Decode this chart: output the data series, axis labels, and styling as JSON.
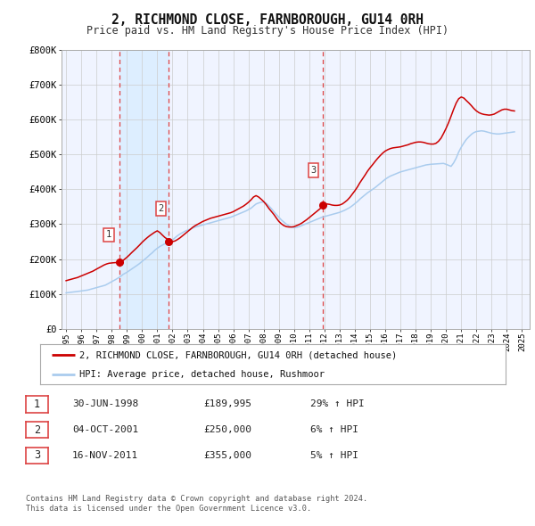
{
  "title": "2, RICHMOND CLOSE, FARNBOROUGH, GU14 0RH",
  "subtitle": "Price paid vs. HM Land Registry's House Price Index (HPI)",
  "ylim": [
    0,
    800000
  ],
  "yticks": [
    0,
    100000,
    200000,
    300000,
    400000,
    500000,
    600000,
    700000,
    800000
  ],
  "ytick_labels": [
    "£0",
    "£100K",
    "£200K",
    "£300K",
    "£400K",
    "£500K",
    "£600K",
    "£700K",
    "£800K"
  ],
  "xlim_start": 1994.7,
  "xlim_end": 2025.5,
  "sale_color": "#cc0000",
  "hpi_color": "#aaccee",
  "vline_color": "#dd4444",
  "vshade_color": "#ddeeff",
  "grid_color": "#cccccc",
  "sale_dates": [
    1998.5,
    2001.75,
    2011.88
  ],
  "sale_prices": [
    189995,
    250000,
    355000
  ],
  "sale_labels": [
    "1",
    "2",
    "3"
  ],
  "vline_dates": [
    1998.5,
    2001.75,
    2011.88
  ],
  "legend_sale_label": "2, RICHMOND CLOSE, FARNBOROUGH, GU14 0RH (detached house)",
  "legend_hpi_label": "HPI: Average price, detached house, Rushmoor",
  "table_rows": [
    {
      "num": "1",
      "date": "30-JUN-1998",
      "price": "£189,995",
      "hpi": "29% ↑ HPI"
    },
    {
      "num": "2",
      "date": "04-OCT-2001",
      "price": "£250,000",
      "hpi": "6% ↑ HPI"
    },
    {
      "num": "3",
      "date": "16-NOV-2011",
      "price": "£355,000",
      "hpi": "5% ↑ HPI"
    }
  ],
  "footnote1": "Contains HM Land Registry data © Crown copyright and database right 2024.",
  "footnote2": "This data is licensed under the Open Government Licence v3.0.",
  "background_color": "#ffffff",
  "plot_bg_color": "#f0f4ff",
  "hpi_series_x": [
    1995.0,
    1995.08,
    1995.17,
    1995.25,
    1995.33,
    1995.42,
    1995.5,
    1995.58,
    1995.67,
    1995.75,
    1995.83,
    1995.92,
    1996.0,
    1996.08,
    1996.17,
    1996.25,
    1996.33,
    1996.42,
    1996.5,
    1996.58,
    1996.67,
    1996.75,
    1996.83,
    1996.92,
    1997.0,
    1997.08,
    1997.17,
    1997.25,
    1997.33,
    1997.42,
    1997.5,
    1997.58,
    1997.67,
    1997.75,
    1997.83,
    1997.92,
    1998.0,
    1998.08,
    1998.17,
    1998.25,
    1998.33,
    1998.42,
    1998.5,
    1998.58,
    1998.67,
    1998.75,
    1998.83,
    1998.92,
    1999.0,
    1999.17,
    1999.33,
    1999.5,
    1999.67,
    1999.83,
    2000.0,
    2000.17,
    2000.33,
    2000.5,
    2000.67,
    2000.83,
    2001.0,
    2001.17,
    2001.33,
    2001.5,
    2001.67,
    2001.83,
    2002.0,
    2002.17,
    2002.33,
    2002.5,
    2002.67,
    2002.83,
    2003.0,
    2003.17,
    2003.33,
    2003.5,
    2003.67,
    2003.83,
    2004.0,
    2004.17,
    2004.33,
    2004.5,
    2004.67,
    2004.83,
    2005.0,
    2005.17,
    2005.33,
    2005.5,
    2005.67,
    2005.83,
    2006.0,
    2006.17,
    2006.33,
    2006.5,
    2006.67,
    2006.83,
    2007.0,
    2007.17,
    2007.33,
    2007.5,
    2007.67,
    2007.83,
    2008.0,
    2008.17,
    2008.33,
    2008.5,
    2008.67,
    2008.83,
    2009.0,
    2009.17,
    2009.33,
    2009.5,
    2009.67,
    2009.83,
    2010.0,
    2010.17,
    2010.33,
    2010.5,
    2010.67,
    2010.83,
    2011.0,
    2011.17,
    2011.33,
    2011.5,
    2011.67,
    2011.83,
    2012.0,
    2012.17,
    2012.33,
    2012.5,
    2012.67,
    2012.83,
    2013.0,
    2013.17,
    2013.33,
    2013.5,
    2013.67,
    2013.83,
    2014.0,
    2014.17,
    2014.33,
    2014.5,
    2014.67,
    2014.83,
    2015.0,
    2015.17,
    2015.33,
    2015.5,
    2015.67,
    2015.83,
    2016.0,
    2016.17,
    2016.33,
    2016.5,
    2016.67,
    2016.83,
    2017.0,
    2017.17,
    2017.33,
    2017.5,
    2017.67,
    2017.83,
    2018.0,
    2018.17,
    2018.33,
    2018.5,
    2018.67,
    2018.83,
    2019.0,
    2019.17,
    2019.33,
    2019.5,
    2019.67,
    2019.83,
    2020.0,
    2020.17,
    2020.33,
    2020.5,
    2020.67,
    2020.83,
    2021.0,
    2021.17,
    2021.33,
    2021.5,
    2021.67,
    2021.83,
    2022.0,
    2022.17,
    2022.33,
    2022.5,
    2022.67,
    2022.83,
    2023.0,
    2023.17,
    2023.33,
    2023.5,
    2023.67,
    2023.83,
    2024.0,
    2024.17,
    2024.33,
    2024.5
  ],
  "hpi_series_y": [
    103000,
    103500,
    104000,
    104500,
    104800,
    105200,
    105600,
    106000,
    106500,
    107000,
    107500,
    108000,
    108500,
    109000,
    109500,
    110000,
    110500,
    111000,
    112000,
    113000,
    114000,
    115000,
    116000,
    117000,
    118000,
    119000,
    120000,
    121000,
    122000,
    123000,
    124000,
    125000,
    127000,
    129000,
    131000,
    133000,
    135000,
    137000,
    139000,
    141000,
    143000,
    145000,
    147500,
    150000,
    153000,
    156000,
    158000,
    160000,
    162000,
    167000,
    172000,
    177000,
    182000,
    187000,
    193000,
    199000,
    205000,
    212000,
    218000,
    225000,
    231000,
    236000,
    240000,
    244000,
    247000,
    250000,
    255000,
    261000,
    267000,
    272000,
    276000,
    280000,
    283000,
    286000,
    289000,
    292000,
    294000,
    296000,
    298000,
    300000,
    302000,
    304000,
    306000,
    308000,
    310000,
    312000,
    314000,
    316000,
    318000,
    320000,
    323000,
    326000,
    329000,
    332000,
    335000,
    338000,
    342000,
    346000,
    352000,
    358000,
    361000,
    363000,
    364000,
    360000,
    353000,
    345000,
    336000,
    328000,
    320000,
    312000,
    306000,
    300000,
    295000,
    292000,
    290000,
    291000,
    293000,
    296000,
    299000,
    302000,
    305000,
    308000,
    311000,
    314000,
    317000,
    320000,
    322000,
    324000,
    326000,
    328000,
    330000,
    332000,
    334000,
    337000,
    340000,
    344000,
    348000,
    353000,
    359000,
    365000,
    372000,
    378000,
    384000,
    390000,
    395000,
    400000,
    405000,
    411000,
    417000,
    423000,
    429000,
    434000,
    438000,
    441000,
    444000,
    447000,
    450000,
    452000,
    454000,
    456000,
    458000,
    460000,
    462000,
    464000,
    466000,
    468000,
    470000,
    471000,
    472000,
    472500,
    473000,
    473500,
    474000,
    474500,
    472000,
    469000,
    466000,
    476000,
    490000,
    507000,
    521000,
    533000,
    543000,
    551000,
    558000,
    563000,
    566000,
    567000,
    568000,
    567000,
    565000,
    563000,
    561000,
    560000,
    559000,
    559000,
    560000,
    561000,
    562000,
    563000,
    564000,
    565000
  ],
  "sale_series_x": [
    1995.0,
    1995.08,
    1995.17,
    1995.25,
    1995.33,
    1995.42,
    1995.5,
    1995.58,
    1995.67,
    1995.75,
    1995.83,
    1995.92,
    1996.0,
    1996.08,
    1996.17,
    1996.25,
    1996.33,
    1996.42,
    1996.5,
    1996.58,
    1996.67,
    1996.75,
    1996.83,
    1996.92,
    1997.0,
    1997.08,
    1997.17,
    1997.25,
    1997.33,
    1997.42,
    1997.5,
    1997.58,
    1997.67,
    1997.75,
    1997.83,
    1997.92,
    1998.0,
    1998.08,
    1998.17,
    1998.25,
    1998.33,
    1998.42,
    1998.5,
    1998.58,
    1998.67,
    1998.75,
    1998.83,
    1998.92,
    1999.0,
    1999.17,
    1999.33,
    1999.5,
    1999.67,
    1999.83,
    2000.0,
    2000.17,
    2000.33,
    2000.5,
    2000.67,
    2000.83,
    2001.0,
    2001.17,
    2001.33,
    2001.5,
    2001.67,
    2001.83,
    2001.92,
    2002.0,
    2002.17,
    2002.33,
    2002.5,
    2002.67,
    2002.83,
    2003.0,
    2003.17,
    2003.33,
    2003.5,
    2003.67,
    2003.83,
    2004.0,
    2004.17,
    2004.33,
    2004.5,
    2004.67,
    2004.83,
    2005.0,
    2005.17,
    2005.33,
    2005.5,
    2005.67,
    2005.83,
    2006.0,
    2006.17,
    2006.33,
    2006.5,
    2006.67,
    2006.83,
    2007.0,
    2007.17,
    2007.33,
    2007.5,
    2007.67,
    2007.83,
    2008.0,
    2008.17,
    2008.33,
    2008.5,
    2008.67,
    2008.83,
    2009.0,
    2009.17,
    2009.33,
    2009.5,
    2009.67,
    2009.83,
    2010.0,
    2010.17,
    2010.33,
    2010.5,
    2010.67,
    2010.83,
    2011.0,
    2011.17,
    2011.33,
    2011.5,
    2011.67,
    2011.83,
    2011.88,
    2012.0,
    2012.17,
    2012.33,
    2012.5,
    2012.67,
    2012.83,
    2013.0,
    2013.17,
    2013.33,
    2013.5,
    2013.67,
    2013.83,
    2014.0,
    2014.17,
    2014.33,
    2014.5,
    2014.67,
    2014.83,
    2015.0,
    2015.17,
    2015.33,
    2015.5,
    2015.67,
    2015.83,
    2016.0,
    2016.17,
    2016.33,
    2016.5,
    2016.67,
    2016.83,
    2017.0,
    2017.17,
    2017.33,
    2017.5,
    2017.67,
    2017.83,
    2018.0,
    2018.17,
    2018.33,
    2018.5,
    2018.67,
    2018.83,
    2019.0,
    2019.17,
    2019.33,
    2019.5,
    2019.67,
    2019.83,
    2020.0,
    2020.17,
    2020.33,
    2020.5,
    2020.67,
    2020.83,
    2021.0,
    2021.17,
    2021.33,
    2021.5,
    2021.67,
    2021.83,
    2022.0,
    2022.17,
    2022.33,
    2022.5,
    2022.67,
    2022.83,
    2023.0,
    2023.17,
    2023.33,
    2023.5,
    2023.67,
    2023.83,
    2024.0,
    2024.17,
    2024.33,
    2024.5
  ],
  "sale_series_y": [
    138000,
    139000,
    140000,
    141000,
    142000,
    143000,
    144000,
    145000,
    146000,
    147000,
    148500,
    150000,
    151500,
    153000,
    154500,
    156000,
    157500,
    159000,
    160500,
    162000,
    163500,
    165000,
    167000,
    169000,
    171000,
    173000,
    175000,
    177000,
    179000,
    181000,
    183000,
    184500,
    186000,
    187000,
    188000,
    188500,
    188800,
    189200,
    189600,
    189800,
    189900,
    189950,
    189995,
    191000,
    193000,
    196000,
    199000,
    202000,
    205000,
    212000,
    219000,
    226000,
    233000,
    240000,
    248000,
    255000,
    261000,
    267000,
    272000,
    277000,
    281000,
    276000,
    269000,
    262000,
    257000,
    252000,
    250500,
    250000,
    252000,
    256000,
    261000,
    267000,
    273000,
    279000,
    285000,
    291000,
    296000,
    300000,
    304000,
    308000,
    311000,
    314000,
    317000,
    319000,
    321000,
    323000,
    325000,
    327000,
    329000,
    331000,
    333000,
    336000,
    340000,
    344000,
    348000,
    352000,
    357000,
    363000,
    370000,
    378000,
    382000,
    378000,
    372000,
    365000,
    356000,
    346000,
    337000,
    328000,
    318000,
    308000,
    301000,
    296000,
    293000,
    292000,
    292000,
    293000,
    296000,
    299000,
    303000,
    308000,
    313000,
    319000,
    325000,
    331000,
    337000,
    343000,
    349000,
    355000,
    357000,
    358000,
    357000,
    355000,
    354000,
    354000,
    355000,
    358000,
    363000,
    369000,
    377000,
    386000,
    396000,
    407000,
    419000,
    430000,
    441000,
    452000,
    462000,
    471000,
    480000,
    489000,
    497000,
    504000,
    510000,
    514000,
    517000,
    519000,
    520000,
    521000,
    522000,
    524000,
    526000,
    528000,
    531000,
    533000,
    535000,
    536000,
    536000,
    535000,
    533000,
    531000,
    530000,
    530000,
    532000,
    538000,
    547000,
    560000,
    575000,
    592000,
    610000,
    630000,
    648000,
    660000,
    665000,
    662000,
    655000,
    648000,
    640000,
    632000,
    625000,
    620000,
    617000,
    615000,
    614000,
    613000,
    614000,
    616000,
    620000,
    624000,
    628000,
    630000,
    630000,
    628000,
    626000,
    625000
  ]
}
